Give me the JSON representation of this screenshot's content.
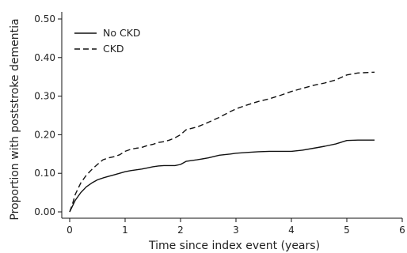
{
  "chart_data": {
    "type": "line",
    "xlabel": "Time since index event (years)",
    "ylabel": "Proportion with poststroke dementia",
    "xlim": [
      0,
      6
    ],
    "ylim": [
      0,
      0.5
    ],
    "xticks": [
      "0",
      "1",
      "2",
      "3",
      "4",
      "5",
      "6"
    ],
    "yticks": [
      "0.00",
      "0.10",
      "0.20",
      "0.30",
      "0.40",
      "0.50"
    ],
    "grid": false,
    "legend_position": "top-left",
    "series": [
      {
        "name": "No CKD",
        "style": "solid",
        "color": "#111111",
        "x": [
          0,
          0.05,
          0.1,
          0.2,
          0.3,
          0.4,
          0.5,
          0.6,
          0.7,
          0.8,
          0.9,
          1.0,
          1.1,
          1.2,
          1.3,
          1.4,
          1.5,
          1.6,
          1.7,
          1.8,
          1.9,
          2.0,
          2.1,
          2.3,
          2.5,
          2.7,
          2.9,
          3.0,
          3.2,
          3.4,
          3.6,
          3.8,
          4.0,
          4.2,
          4.4,
          4.6,
          4.8,
          5.0,
          5.2,
          5.5
        ],
        "y": [
          0.0,
          0.015,
          0.03,
          0.05,
          0.065,
          0.075,
          0.083,
          0.088,
          0.092,
          0.096,
          0.1,
          0.104,
          0.107,
          0.109,
          0.111,
          0.114,
          0.117,
          0.119,
          0.12,
          0.12,
          0.12,
          0.123,
          0.131,
          0.135,
          0.14,
          0.147,
          0.15,
          0.152,
          0.154,
          0.156,
          0.157,
          0.157,
          0.157,
          0.16,
          0.165,
          0.17,
          0.176,
          0.185,
          0.186,
          0.186
        ]
      },
      {
        "name": "CKD",
        "style": "dashed",
        "color": "#111111",
        "x": [
          0,
          0.05,
          0.1,
          0.2,
          0.3,
          0.4,
          0.5,
          0.6,
          0.7,
          0.8,
          0.9,
          1.0,
          1.1,
          1.2,
          1.3,
          1.4,
          1.5,
          1.6,
          1.7,
          1.8,
          1.9,
          2.0,
          2.1,
          2.3,
          2.5,
          2.7,
          2.9,
          3.0,
          3.2,
          3.4,
          3.6,
          3.8,
          4.0,
          4.2,
          4.4,
          4.6,
          4.8,
          5.0,
          5.2,
          5.5
        ],
        "y": [
          0.0,
          0.02,
          0.045,
          0.075,
          0.095,
          0.11,
          0.123,
          0.135,
          0.14,
          0.143,
          0.148,
          0.157,
          0.162,
          0.165,
          0.167,
          0.172,
          0.175,
          0.18,
          0.182,
          0.186,
          0.192,
          0.2,
          0.213,
          0.22,
          0.232,
          0.245,
          0.26,
          0.267,
          0.277,
          0.286,
          0.293,
          0.302,
          0.312,
          0.32,
          0.328,
          0.334,
          0.342,
          0.355,
          0.36,
          0.362
        ]
      }
    ]
  }
}
